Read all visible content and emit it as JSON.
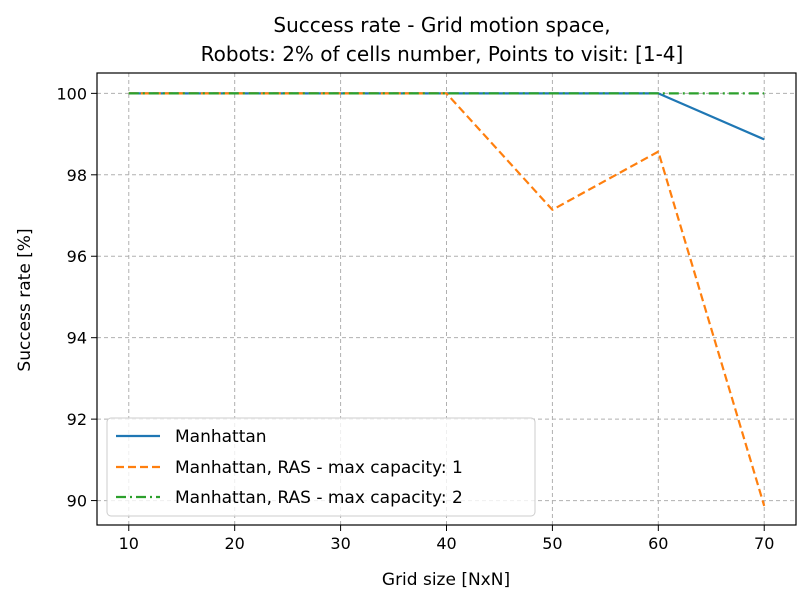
{
  "chart_data": {
    "type": "line",
    "title_lines": [
      "Success rate - Grid motion space,",
      "Robots: 2% of cells number, Points to visit: [1-4]"
    ],
    "xlabel": "Grid size [NxN]",
    "ylabel": "Success rate [%]",
    "x": [
      10,
      20,
      30,
      40,
      50,
      60,
      70
    ],
    "xlim": [
      7,
      73
    ],
    "ylim": [
      89.4,
      100.5
    ],
    "xticks": [
      10,
      20,
      30,
      40,
      50,
      60,
      70
    ],
    "yticks": [
      90,
      92,
      94,
      96,
      98,
      100
    ],
    "grid": true,
    "legend_position": "lower-left",
    "series": [
      {
        "name": "Manhattan",
        "values": [
          100,
          100,
          100,
          100,
          100,
          100,
          98.87
        ],
        "color": "#1f77b4",
        "dash": "solid"
      },
      {
        "name": "Manhattan, RAS - max capacity: 1",
        "values": [
          100,
          100,
          100,
          100,
          97.14,
          98.57,
          89.87
        ],
        "color": "#ff7f0e",
        "dash": "dashed"
      },
      {
        "name": "Manhattan, RAS - max capacity: 2",
        "values": [
          100,
          100,
          100,
          100,
          100,
          100,
          100
        ],
        "color": "#2ca02c",
        "dash": "dashdot"
      }
    ]
  }
}
